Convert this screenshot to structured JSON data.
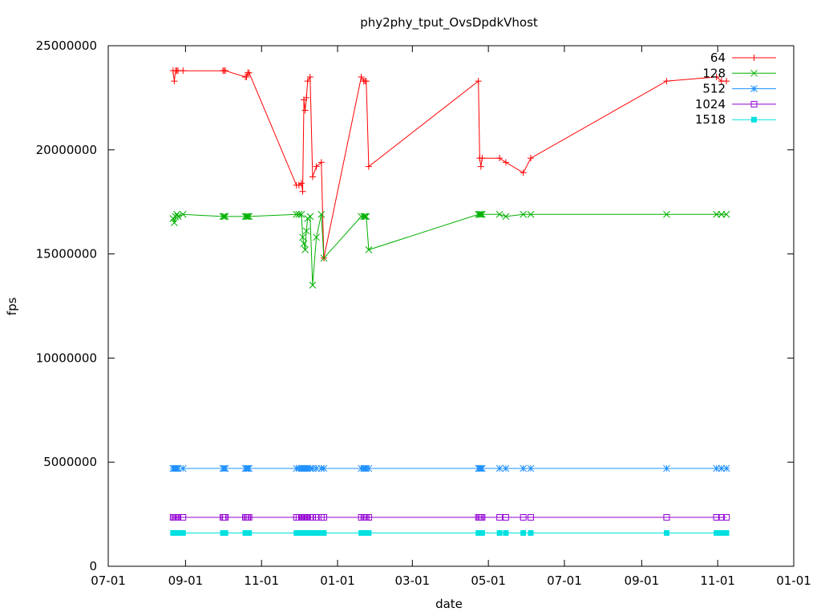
{
  "chart_data": {
    "type": "line",
    "title": "phy2phy_tput_OvsDpdkVhost",
    "xlabel": "date",
    "ylabel": "fps",
    "xlim": [
      "2015-07-01",
      "2017-01-01"
    ],
    "ylim": [
      0,
      25000000
    ],
    "x_ticks": [
      {
        "date": "2015-07-01",
        "label": "07-01"
      },
      {
        "date": "2015-09-01",
        "label": "09-01"
      },
      {
        "date": "2015-11-01",
        "label": "11-01"
      },
      {
        "date": "2016-01-01",
        "label": "01-01"
      },
      {
        "date": "2016-03-01",
        "label": "03-01"
      },
      {
        "date": "2016-05-01",
        "label": "05-01"
      },
      {
        "date": "2016-07-01",
        "label": "07-01"
      },
      {
        "date": "2016-09-01",
        "label": "09-01"
      },
      {
        "date": "2016-11-01",
        "label": "11-01"
      },
      {
        "date": "2017-01-01",
        "label": "01-01"
      }
    ],
    "y_ticks": [
      {
        "value": 0,
        "label": "0"
      },
      {
        "value": 5000000,
        "label": "5000000"
      },
      {
        "value": 10000000,
        "label": "10000000"
      },
      {
        "value": 15000000,
        "label": "15000000"
      },
      {
        "value": 20000000,
        "label": "20000000"
      },
      {
        "value": 25000000,
        "label": "25000000"
      }
    ],
    "grid": false,
    "legend_position": "top-right",
    "x": [
      "2015-08-22",
      "2015-08-23",
      "2015-08-24",
      "2015-08-25",
      "2015-08-26",
      "2015-08-30",
      "2015-10-01",
      "2015-10-02",
      "2015-10-03",
      "2015-10-19",
      "2015-10-20",
      "2015-10-21",
      "2015-10-22",
      "2015-11-29",
      "2015-12-01",
      "2015-12-03",
      "2015-12-04",
      "2015-12-05",
      "2015-12-06",
      "2015-12-07",
      "2015-12-08",
      "2015-12-10",
      "2015-12-12",
      "2015-12-15",
      "2015-12-19",
      "2015-12-21",
      "2016-01-20",
      "2016-01-22",
      "2016-01-23",
      "2016-01-24",
      "2016-01-26",
      "2016-04-23",
      "2016-04-24",
      "2016-04-25",
      "2016-04-26",
      "2016-05-10",
      "2016-05-15",
      "2016-05-29",
      "2016-06-04",
      "2016-09-21",
      "2016-10-31",
      "2016-11-04",
      "2016-11-08"
    ],
    "series": [
      {
        "name": "64",
        "color": "#ff0000",
        "marker": "plus",
        "values": [
          23800000,
          23300000,
          23800000,
          23800000,
          23800000,
          23800000,
          23800000,
          23800000,
          23800000,
          23500000,
          23500000,
          23700000,
          23700000,
          18300000,
          18300000,
          18400000,
          18000000,
          22400000,
          21900000,
          22500000,
          23300000,
          23500000,
          18700000,
          19200000,
          19400000,
          14800000,
          23500000,
          23300000,
          23300000,
          23300000,
          19200000,
          23300000,
          19600000,
          19200000,
          19600000,
          19600000,
          19400000,
          18900000,
          19600000,
          23300000,
          23500000,
          23300000,
          23300000
        ]
      },
      {
        "name": "128",
        "color": "#00b000",
        "marker": "x",
        "values": [
          16700000,
          16500000,
          16800000,
          16900000,
          16800000,
          16900000,
          16800000,
          16800000,
          16800000,
          16800000,
          16800000,
          16800000,
          16800000,
          16900000,
          16900000,
          16900000,
          15800000,
          15500000,
          15200000,
          16100000,
          16700000,
          16800000,
          13500000,
          15800000,
          16900000,
          14800000,
          16800000,
          16800000,
          16800000,
          16800000,
          15200000,
          16900000,
          16900000,
          16900000,
          16900000,
          16900000,
          16800000,
          16900000,
          16900000,
          16900000,
          16900000,
          16900000,
          16900000
        ]
      },
      {
        "name": "512",
        "color": "#1e90ff",
        "marker": "star",
        "values": [
          4700000,
          4700000,
          4700000,
          4700000,
          4700000,
          4700000,
          4700000,
          4700000,
          4700000,
          4700000,
          4700000,
          4700000,
          4700000,
          4700000,
          4700000,
          4700000,
          4700000,
          4700000,
          4700000,
          4700000,
          4700000,
          4700000,
          4700000,
          4700000,
          4700000,
          4700000,
          4700000,
          4700000,
          4700000,
          4700000,
          4700000,
          4700000,
          4700000,
          4700000,
          4700000,
          4700000,
          4700000,
          4700000,
          4700000,
          4700000,
          4700000,
          4700000,
          4700000
        ]
      },
      {
        "name": "1024",
        "color": "#9400d3",
        "marker": "open-square",
        "values": [
          2350000,
          2350000,
          2350000,
          2350000,
          2350000,
          2350000,
          2350000,
          2350000,
          2350000,
          2350000,
          2350000,
          2350000,
          2350000,
          2350000,
          2350000,
          2350000,
          2350000,
          2350000,
          2350000,
          2350000,
          2350000,
          2350000,
          2350000,
          2350000,
          2350000,
          2350000,
          2350000,
          2350000,
          2350000,
          2350000,
          2350000,
          2350000,
          2350000,
          2350000,
          2350000,
          2350000,
          2350000,
          2350000,
          2350000,
          2350000,
          2350000,
          2350000,
          2350000
        ]
      },
      {
        "name": "1518",
        "color": "#00e0e0",
        "marker": "filled-square",
        "values": [
          1600000,
          1600000,
          1600000,
          1600000,
          1600000,
          1600000,
          1600000,
          1600000,
          1600000,
          1600000,
          1600000,
          1600000,
          1600000,
          1600000,
          1600000,
          1600000,
          1600000,
          1600000,
          1600000,
          1600000,
          1600000,
          1600000,
          1600000,
          1600000,
          1600000,
          1600000,
          1600000,
          1600000,
          1600000,
          1600000,
          1600000,
          1600000,
          1600000,
          1600000,
          1600000,
          1600000,
          1600000,
          1600000,
          1600000,
          1600000,
          1600000,
          1600000,
          1600000
        ]
      }
    ]
  }
}
